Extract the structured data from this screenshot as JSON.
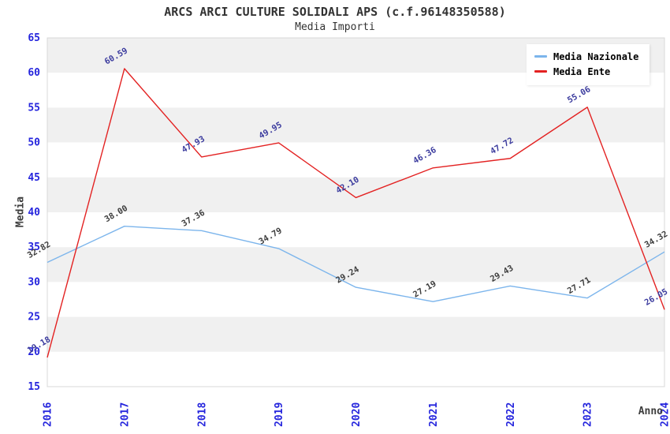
{
  "chart_data": {
    "type": "line",
    "title": "ARCS ARCI CULTURE SOLIDALI APS (c.f.96148350588)",
    "subtitle": "Media Importi",
    "categories": [
      "2016",
      "2017",
      "2018",
      "2019",
      "2020",
      "2021",
      "2022",
      "2023",
      "2024"
    ],
    "series": [
      {
        "name": "Media Nazionale",
        "color": "#7cb5ec",
        "label_color": "#3d3d3d",
        "values": [
          32.82,
          38.0,
          37.36,
          34.79,
          29.24,
          27.19,
          29.43,
          27.71,
          34.32
        ]
      },
      {
        "name": "Media Ente",
        "color": "#e32222",
        "label_color": "#3b3b9e",
        "values": [
          19.18,
          60.59,
          47.93,
          49.95,
          42.1,
          46.36,
          47.72,
          55.06,
          26.05
        ]
      }
    ],
    "xlabel": "Anno",
    "ylabel": "Media",
    "ylim": [
      15,
      65
    ],
    "ytick_step": 5,
    "label_decimals": 2,
    "grid": "alternating-horizontal-bands",
    "legend_position": "top-right",
    "band_color": "#f0f0f0",
    "plot_background": "#ffffff",
    "plot_border_color": "#d8d8d8",
    "axis_tick_color": "#2525dd"
  }
}
